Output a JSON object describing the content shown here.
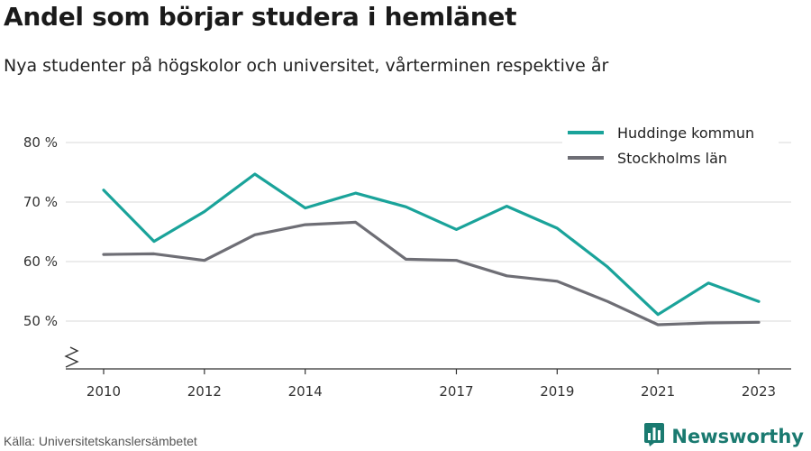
{
  "header": {
    "title": "Andel som börjar studera i hemlänet",
    "subtitle": "Nya studenter på högskolor och universitet, vårterminen respektive år"
  },
  "footer": {
    "source": "Källa: Universitetskanslersämbetet",
    "brand": "Newsworthy",
    "brand_icon": "bar-chart-logo-icon",
    "brand_color": "#1a7a70"
  },
  "chart_data": {
    "type": "line",
    "x": [
      2010,
      2011,
      2012,
      2013,
      2014,
      2015,
      2016,
      2017,
      2018,
      2019,
      2020,
      2021,
      2022,
      2023
    ],
    "x_tick_labels": [
      "2010",
      "2012",
      "2014",
      "2017",
      "2019",
      "2021",
      "2023"
    ],
    "y_tick_labels": [
      "50 %",
      "60 %",
      "70 %",
      "80 %"
    ],
    "ylim": [
      42,
      82
    ],
    "y_ticks": [
      50,
      60,
      70,
      80
    ],
    "y_axis_break": true,
    "grid": true,
    "legend_position": "top-right",
    "series": [
      {
        "name": "Huddinge kommun",
        "color": "#1aa39a",
        "values": [
          72.0,
          63.4,
          68.4,
          74.7,
          69.0,
          71.5,
          69.2,
          65.4,
          69.3,
          65.6,
          59.1,
          51.1,
          56.4,
          53.3
        ]
      },
      {
        "name": "Stockholms län",
        "color": "#6e6e75",
        "values": [
          61.2,
          61.3,
          60.2,
          64.5,
          66.2,
          66.6,
          60.4,
          60.2,
          57.6,
          56.7,
          53.3,
          49.4,
          49.7,
          49.8
        ]
      }
    ]
  }
}
